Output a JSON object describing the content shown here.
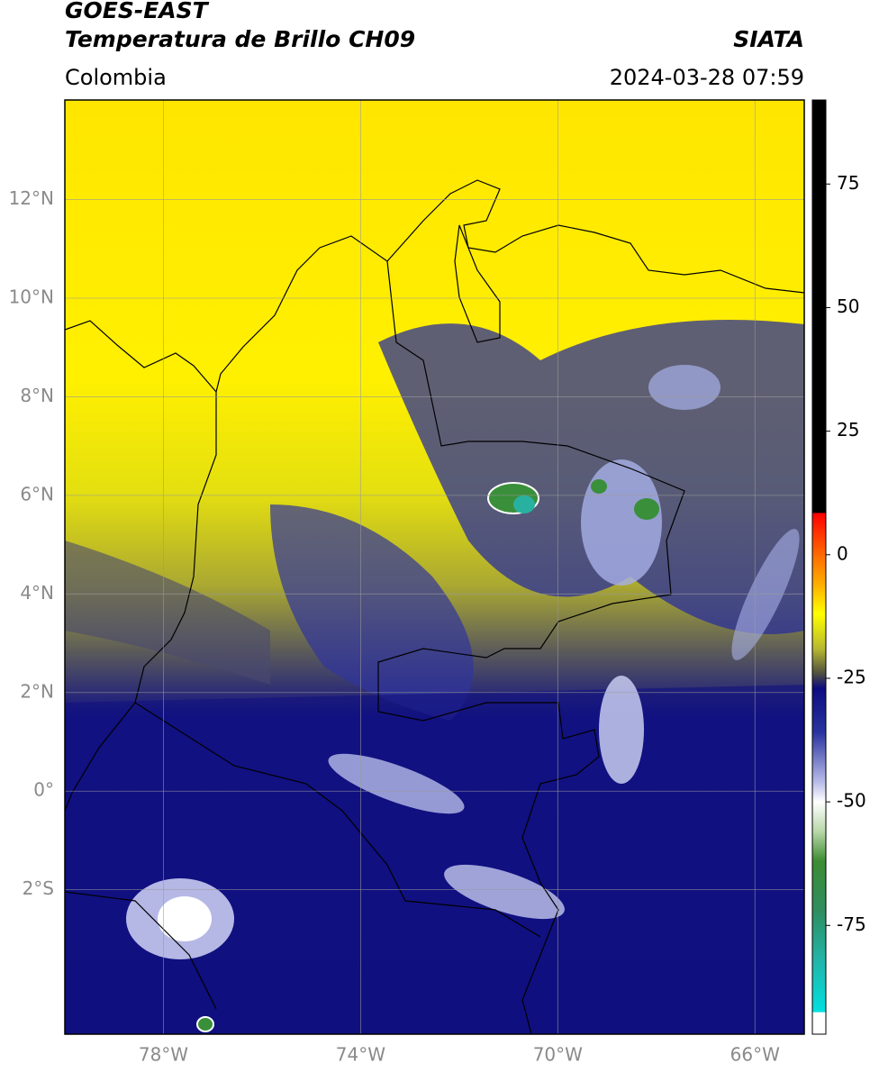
{
  "header": {
    "title": "GOES-EAST",
    "subtitle": "Temperatura de Brillo CH09",
    "region": "Colombia",
    "source": "SIATA",
    "timestamp": "2024-03-28 07:59"
  },
  "map": {
    "xlim": [
      -80.0,
      -65.0
    ],
    "ylim": [
      -4.93,
      14.02
    ],
    "xticks": [
      {
        "value": -78,
        "label": "78°W"
      },
      {
        "value": -74,
        "label": "74°W"
      },
      {
        "value": -70,
        "label": "70°W"
      },
      {
        "value": -66,
        "label": "66°W"
      }
    ],
    "yticks": [
      {
        "value": 12,
        "label": "12°N"
      },
      {
        "value": 10,
        "label": "10°N"
      },
      {
        "value": 8,
        "label": "8°N"
      },
      {
        "value": 6,
        "label": "6°N"
      },
      {
        "value": 4,
        "label": "4°N"
      },
      {
        "value": 2,
        "label": "2°N"
      },
      {
        "value": 0,
        "label": "0°"
      },
      {
        "value": -2,
        "label": "2°S"
      }
    ],
    "grid": true
  },
  "colorbar": {
    "lim": [
      -97,
      92
    ],
    "ticks": [
      75,
      50,
      25,
      0,
      -25,
      -50,
      -75
    ],
    "colormap": [
      {
        "value": 92,
        "color": "#000000"
      },
      {
        "value": 8.5,
        "color": "#000000"
      },
      {
        "value": 8.4,
        "color": "#ff0000"
      },
      {
        "value": 0,
        "color": "#ff6a00"
      },
      {
        "value": -6,
        "color": "#ffae00"
      },
      {
        "value": -12,
        "color": "#ffff00"
      },
      {
        "value": -19,
        "color": "#b8b830"
      },
      {
        "value": -24,
        "color": "#505040"
      },
      {
        "value": -27,
        "color": "#0c0c80"
      },
      {
        "value": -36,
        "color": "#2a34a0"
      },
      {
        "value": -46,
        "color": "#b8bce8"
      },
      {
        "value": -50,
        "color": "#ffffff"
      },
      {
        "value": -56,
        "color": "#b8d8a8"
      },
      {
        "value": -62,
        "color": "#3c8c32"
      },
      {
        "value": -72,
        "color": "#2e8e60"
      },
      {
        "value": -82,
        "color": "#22b4a8"
      },
      {
        "value": -92.5,
        "color": "#00e0e0"
      },
      {
        "value": -92.6,
        "color": "#ffffff"
      },
      {
        "value": -97,
        "color": "#ffffff"
      }
    ]
  }
}
